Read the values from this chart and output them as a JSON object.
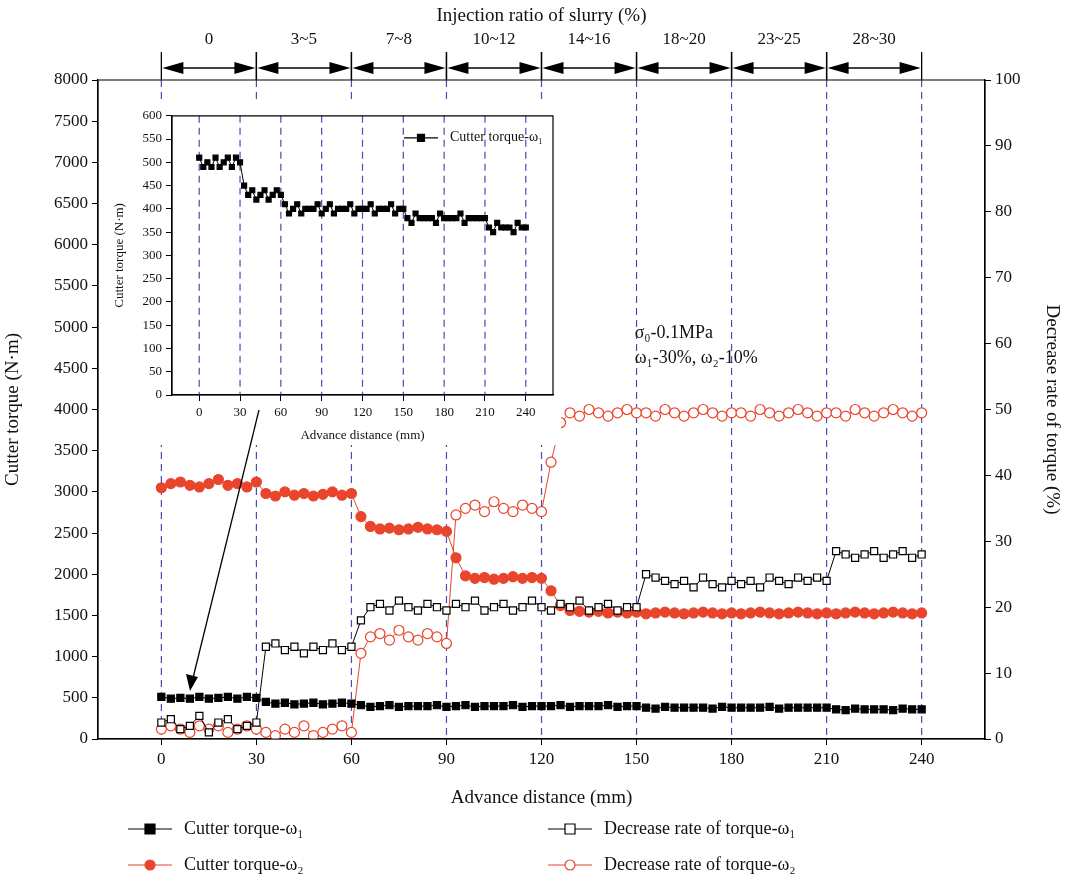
{
  "chart_data": [
    {
      "type": "line",
      "title": "Injection ratio of slurry (%)",
      "xlabel": "Advance distance (mm)",
      "ylabel": "Cutter torque (N·m)",
      "y2label": "Decrease rate of torque (%)",
      "x": [
        0,
        3,
        6,
        9,
        12,
        15,
        18,
        21,
        24,
        27,
        30,
        33,
        36,
        39,
        42,
        45,
        48,
        51,
        54,
        57,
        60,
        63,
        66,
        69,
        72,
        75,
        78,
        81,
        84,
        87,
        90,
        93,
        96,
        99,
        102,
        105,
        108,
        111,
        114,
        117,
        120,
        123,
        126,
        129,
        132,
        135,
        138,
        141,
        144,
        147,
        150,
        153,
        156,
        159,
        162,
        165,
        168,
        171,
        174,
        177,
        180,
        183,
        186,
        189,
        192,
        195,
        198,
        201,
        204,
        207,
        210,
        213,
        216,
        219,
        222,
        225,
        228,
        231,
        234,
        237,
        240
      ],
      "series": [
        {
          "name": "Cutter torque-ω₁",
          "color": "#000000",
          "marker": "square",
          "values": [
            510,
            490,
            500,
            490,
            510,
            490,
            500,
            510,
            490,
            510,
            500,
            450,
            430,
            440,
            420,
            430,
            440,
            420,
            430,
            440,
            430,
            410,
            390,
            400,
            410,
            390,
            400,
            400,
            400,
            410,
            390,
            400,
            410,
            390,
            400,
            400,
            400,
            410,
            390,
            400,
            400,
            400,
            410,
            390,
            400,
            400,
            400,
            410,
            390,
            400,
            400,
            380,
            370,
            390,
            380,
            380,
            380,
            380,
            370,
            390,
            380,
            380,
            380,
            380,
            390,
            370,
            380,
            380,
            380,
            380,
            380,
            360,
            350,
            370,
            360,
            360,
            360,
            350,
            370,
            360,
            360
          ]
        },
        {
          "name": "Decrease rate of torque-ω₁",
          "color": "#000000",
          "marker": "square",
          "axis": "y2",
          "values": [
            2.5,
            3,
            1.5,
            2,
            3.5,
            1,
            2.5,
            3,
            1.5,
            2,
            2.5,
            14,
            14.5,
            13.5,
            14,
            13,
            14,
            13.5,
            14.5,
            13.5,
            14,
            18,
            20,
            20.5,
            19.5,
            21,
            20,
            19.5,
            20.5,
            20,
            19.5,
            20.5,
            20,
            21,
            19.5,
            20,
            20.5,
            19.5,
            20,
            21,
            20,
            19.5,
            20.5,
            20,
            21,
            19.5,
            20,
            20.5,
            19.5,
            20,
            20,
            25,
            24.5,
            24,
            23.5,
            24,
            23,
            24.5,
            23.5,
            23,
            24,
            23.5,
            24,
            23,
            24.5,
            24,
            23.5,
            24.5,
            24,
            24.5,
            24,
            28.5,
            28,
            27.5,
            28,
            28.5,
            27.5,
            28,
            28.5,
            27.5,
            28
          ]
        },
        {
          "name": "Cutter torque-ω₂",
          "color": "#e8452c",
          "marker": "circle",
          "values": [
            3050,
            3100,
            3120,
            3080,
            3060,
            3100,
            3150,
            3080,
            3100,
            3060,
            3120,
            2980,
            2950,
            3000,
            2960,
            2980,
            2950,
            2970,
            3000,
            2960,
            2980,
            2700,
            2580,
            2550,
            2560,
            2540,
            2550,
            2570,
            2550,
            2540,
            2520,
            2200,
            1980,
            1950,
            1960,
            1940,
            1950,
            1970,
            1950,
            1960,
            1950,
            1800,
            1620,
            1560,
            1550,
            1540,
            1550,
            1530,
            1540,
            1530,
            1540,
            1520,
            1530,
            1540,
            1530,
            1520,
            1530,
            1540,
            1530,
            1520,
            1530,
            1520,
            1530,
            1540,
            1530,
            1520,
            1530,
            1540,
            1530,
            1520,
            1530,
            1520,
            1530,
            1540,
            1530,
            1520,
            1530,
            1540,
            1530,
            1520,
            1530
          ]
        },
        {
          "name": "Decrease rate of torque-ω₂",
          "color": "#e8452c",
          "marker": "circle",
          "axis": "y2",
          "values": [
            1.5,
            2,
            1.5,
            1,
            2,
            1.5,
            2,
            1,
            1.5,
            2,
            1.5,
            1,
            0.5,
            1.5,
            1,
            2,
            0.5,
            1,
            1.5,
            2,
            1,
            13,
            15.5,
            16,
            15,
            16.5,
            15.5,
            15,
            16,
            15.5,
            14.5,
            34,
            35,
            35.5,
            34.5,
            36,
            35,
            34.5,
            35.5,
            35,
            34.5,
            42,
            48,
            49.5,
            49,
            50,
            49.5,
            49,
            49.5,
            50,
            49.5,
            49.5,
            49,
            50,
            49.5,
            49,
            49.5,
            50,
            49.5,
            49,
            49.5,
            49.5,
            49,
            50,
            49.5,
            49,
            49.5,
            50,
            49.5,
            49,
            49.5,
            49.5,
            49,
            50,
            49.5,
            49,
            49.5,
            50,
            49.5,
            49,
            49.5
          ]
        }
      ],
      "xlim": [
        -20,
        260
      ],
      "xticks": [
        0,
        30,
        60,
        90,
        120,
        150,
        180,
        210,
        240
      ],
      "ylim": [
        0,
        8000
      ],
      "yticks": [
        0,
        500,
        1000,
        1500,
        2000,
        2500,
        3000,
        3500,
        4000,
        4500,
        5000,
        5500,
        6000,
        6500,
        7000,
        7500,
        8000
      ],
      "y2lim": [
        0,
        100
      ],
      "y2ticks": [
        0,
        10,
        20,
        30,
        40,
        50,
        60,
        70,
        80,
        90,
        100
      ],
      "ref_lines": [
        {
          "axis": "x",
          "value": 0,
          "color": "#4a4ab8",
          "line_style": "dashed"
        },
        {
          "axis": "x",
          "value": 30,
          "color": "#4a4ab8",
          "line_style": "dashed"
        },
        {
          "axis": "x",
          "value": 60,
          "color": "#4a4ab8",
          "line_style": "dashed"
        },
        {
          "axis": "x",
          "value": 90,
          "color": "#4a4ab8",
          "line_style": "dashed"
        },
        {
          "axis": "x",
          "value": 120,
          "color": "#4a4ab8",
          "line_style": "dashed"
        },
        {
          "axis": "x",
          "value": 150,
          "color": "#4a4ab8",
          "line_style": "dashed"
        },
        {
          "axis": "x",
          "value": 180,
          "color": "#4a4ab8",
          "line_style": "dashed"
        },
        {
          "axis": "x",
          "value": 210,
          "color": "#4a4ab8",
          "line_style": "dashed"
        },
        {
          "axis": "x",
          "value": 240,
          "color": "#4a4ab8",
          "line_style": "dashed"
        }
      ],
      "annotations": [
        "σ₀-0.1MPa",
        "ω₁-30%, ω₂-10%",
        "0",
        "3~5",
        "7~8",
        "10~12",
        "14~16",
        "18~20",
        "23~25",
        "28~30"
      ],
      "legend": "bottom",
      "line_style": "solid"
    },
    {
      "type": "line",
      "xlabel": "Advance distance (mm)",
      "ylabel": "Cutter torque (N·m)",
      "x": [
        0,
        3,
        6,
        9,
        12,
        15,
        18,
        21,
        24,
        27,
        30,
        33,
        36,
        39,
        42,
        45,
        48,
        51,
        54,
        57,
        60,
        63,
        66,
        69,
        72,
        75,
        78,
        81,
        84,
        87,
        90,
        93,
        96,
        99,
        102,
        105,
        108,
        111,
        114,
        117,
        120,
        123,
        126,
        129,
        132,
        135,
        138,
        141,
        144,
        147,
        150,
        153,
        156,
        159,
        162,
        165,
        168,
        171,
        174,
        177,
        180,
        183,
        186,
        189,
        192,
        195,
        198,
        201,
        204,
        207,
        210,
        213,
        216,
        219,
        222,
        225,
        228,
        231,
        234,
        237,
        240
      ],
      "series": [
        {
          "name": "Cutter torque-ω₁",
          "color": "#000000",
          "values": [
            510,
            490,
            500,
            490,
            510,
            490,
            500,
            510,
            490,
            510,
            500,
            450,
            430,
            440,
            420,
            430,
            440,
            420,
            430,
            440,
            430,
            410,
            390,
            400,
            410,
            390,
            400,
            400,
            400,
            410,
            390,
            400,
            410,
            390,
            400,
            400,
            400,
            410,
            390,
            400,
            400,
            400,
            410,
            390,
            400,
            400,
            400,
            410,
            390,
            400,
            400,
            380,
            370,
            390,
            380,
            380,
            380,
            380,
            370,
            390,
            380,
            380,
            380,
            380,
            390,
            370,
            380,
            380,
            380,
            380,
            380,
            360,
            350,
            370,
            360,
            360,
            360,
            350,
            370,
            360,
            360
          ]
        }
      ],
      "xlim": [
        -20,
        260
      ],
      "xticks": [
        0,
        30,
        60,
        90,
        120,
        150,
        180,
        210,
        240
      ],
      "ylim": [
        0,
        600
      ],
      "yticks": [
        0,
        50,
        100,
        150,
        200,
        250,
        300,
        350,
        400,
        450,
        500,
        550,
        600
      ],
      "ref_lines": [
        {
          "axis": "x",
          "value": 0,
          "color": "#4a4ab8",
          "line_style": "dashed"
        },
        {
          "axis": "x",
          "value": 30,
          "color": "#4a4ab8",
          "line_style": "dashed"
        },
        {
          "axis": "x",
          "value": 60,
          "color": "#4a4ab8",
          "line_style": "dashed"
        },
        {
          "axis": "x",
          "value": 90,
          "color": "#4a4ab8",
          "line_style": "dashed"
        },
        {
          "axis": "x",
          "value": 120,
          "color": "#4a4ab8",
          "line_style": "dashed"
        },
        {
          "axis": "x",
          "value": 150,
          "color": "#4a4ab8",
          "line_style": "dashed"
        },
        {
          "axis": "x",
          "value": 180,
          "color": "#4a4ab8",
          "line_style": "dashed"
        },
        {
          "axis": "x",
          "value": 210,
          "color": "#4a4ab8",
          "line_style": "dashed"
        },
        {
          "axis": "x",
          "value": 240,
          "color": "#4a4ab8",
          "line_style": "dashed"
        }
      ],
      "legend": "top right",
      "marker": "square",
      "line_style": "solid"
    }
  ]
}
